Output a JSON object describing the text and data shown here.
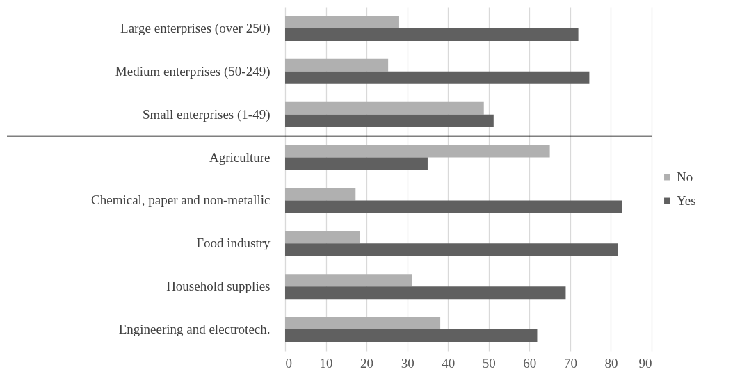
{
  "chart_data": {
    "type": "bar",
    "orientation": "horizontal",
    "categories": [
      "Large enterprises (over 250)",
      "Medium enterprises (50-249)",
      "Small enterprises (1-49)",
      "Agriculture",
      "Chemical, paper and non-metallic",
      "Food industry",
      "Household supplies",
      "Engineering and electrotech."
    ],
    "series": [
      {
        "name": "No",
        "color": "#b0b0b0",
        "values": [
          28.0,
          25.3,
          48.8,
          65.0,
          17.3,
          18.3,
          31.1,
          38.1
        ]
      },
      {
        "name": "Yes",
        "color": "#606060",
        "values": [
          72.0,
          74.7,
          51.2,
          35.0,
          82.7,
          81.7,
          68.9,
          61.9
        ]
      }
    ],
    "xlim": [
      0,
      90
    ],
    "xticks": [
      0,
      10,
      20,
      30,
      40,
      50,
      60,
      70,
      80,
      90
    ],
    "grid": "x",
    "legend": "right",
    "ref_lines": [
      {
        "axis": "y",
        "value": "Small enterprises (1-49)",
        "color": "#000000"
      }
    ]
  }
}
